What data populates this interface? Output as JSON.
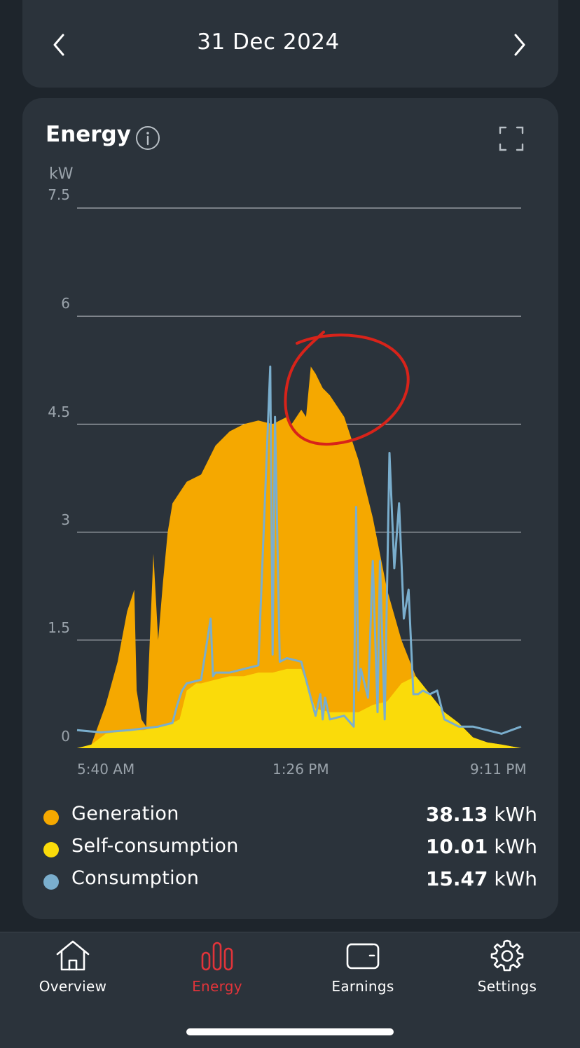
{
  "header": {
    "date": "31 Dec 2024",
    "prev_icon": "chevron-left-icon",
    "next_icon": "chevron-right-icon"
  },
  "card": {
    "title": "Energy",
    "info_icon": "info-icon",
    "expand_icon": "fullscreen-icon"
  },
  "chart_data": {
    "type": "area",
    "y_unit": "kW",
    "ylim": [
      0,
      7.5
    ],
    "yticks": [
      "7.5",
      "6",
      "4.5",
      "3",
      "1.5",
      "0"
    ],
    "xticks": [
      "5:40 AM",
      "1:26 PM",
      "9:11 PM"
    ],
    "grid": true,
    "colors": {
      "generation": "#f5a800",
      "self_consumption": "#fadb0a",
      "consumption": "#7aaecd",
      "annotation": "#d8231a"
    },
    "series": [
      {
        "name": "Generation",
        "x": [
          "5:40 AM",
          "6:10 AM",
          "6:40 AM",
          "7:05 AM",
          "7:25 AM",
          "7:40 AM",
          "7:45 AM",
          "7:55 AM",
          "8:05 AM",
          "8:20 AM",
          "8:30 AM",
          "8:40 AM",
          "8:50 AM",
          "9:00 AM",
          "9:30 AM",
          "10:00 AM",
          "10:30 AM",
          "11:00 AM",
          "11:30 AM",
          "12:00 PM",
          "12:30 PM",
          "1:00 PM",
          "1:10 PM",
          "1:30 PM",
          "1:40 PM",
          "1:50 PM",
          "2:00 PM",
          "2:15 PM",
          "2:30 PM",
          "3:00 PM",
          "3:30 PM",
          "4:00 PM",
          "4:30 PM",
          "5:00 PM",
          "5:30 PM",
          "6:00 PM",
          "6:30 PM",
          "7:00 PM",
          "7:30 PM",
          "8:00 PM",
          "8:30 PM",
          "9:11 PM"
        ],
        "values": [
          0,
          0.05,
          0.6,
          1.2,
          1.9,
          2.2,
          0.8,
          0.4,
          0.3,
          2.7,
          1.5,
          2.3,
          3.0,
          3.4,
          3.7,
          3.8,
          4.2,
          4.4,
          4.5,
          4.55,
          4.5,
          4.6,
          4.5,
          4.7,
          4.6,
          5.3,
          5.2,
          5.0,
          4.9,
          4.6,
          4.0,
          3.2,
          2.2,
          1.5,
          1.0,
          0.75,
          0.5,
          0.35,
          0.15,
          0.08,
          0.05,
          0
        ]
      },
      {
        "name": "Self-consumption",
        "x": [
          "5:40 AM",
          "6:10 AM",
          "6:40 AM",
          "7:30 AM",
          "8:00 AM",
          "8:30 AM",
          "9:00 AM",
          "9:15 AM",
          "9:30 AM",
          "9:50 AM",
          "10:00 AM",
          "10:30 AM",
          "11:00 AM",
          "11:30 AM",
          "12:00 PM",
          "12:30 PM",
          "1:00 PM",
          "1:30 PM",
          "2:00 PM",
          "2:30 PM",
          "3:00 PM",
          "3:30 PM",
          "4:00 PM",
          "4:30 PM",
          "5:00 PM",
          "5:30 PM",
          "6:00 PM",
          "6:30 PM",
          "7:00 PM",
          "7:30 PM",
          "8:00 PM",
          "8:30 PM",
          "9:11 PM"
        ],
        "values": [
          0,
          0.05,
          0.2,
          0.25,
          0.25,
          0.3,
          0.35,
          0.4,
          0.8,
          0.9,
          0.9,
          0.95,
          1.0,
          1.0,
          1.05,
          1.05,
          1.1,
          1.1,
          0.55,
          0.5,
          0.5,
          0.5,
          0.6,
          0.65,
          0.9,
          1.0,
          0.75,
          0.5,
          0.35,
          0.15,
          0.08,
          0.05,
          0
        ]
      },
      {
        "name": "Consumption",
        "x": [
          "5:40 AM",
          "6:30 AM",
          "7:30 AM",
          "8:30 AM",
          "9:00 AM",
          "9:10 AM",
          "9:20 AM",
          "9:30 AM",
          "10:00 AM",
          "10:20 AM",
          "10:25 AM",
          "10:30 AM",
          "11:00 AM",
          "11:30 AM",
          "12:00 PM",
          "12:25 PM",
          "12:30 PM",
          "12:35 PM",
          "12:45 PM",
          "1:00 PM",
          "1:30 PM",
          "2:00 PM",
          "2:10 PM",
          "2:15 PM",
          "2:20 PM",
          "2:30 PM",
          "3:00 PM",
          "3:20 PM",
          "3:25 PM",
          "3:30 PM",
          "3:35 PM",
          "3:50 PM",
          "4:00 PM",
          "4:10 PM",
          "4:15 PM",
          "4:25 PM",
          "4:35 PM",
          "4:45 PM",
          "4:55 PM",
          "5:05 PM",
          "5:15 PM",
          "5:25 PM",
          "5:35 PM",
          "5:45 PM",
          "6:00 PM",
          "6:15 PM",
          "6:30 PM",
          "7:00 PM",
          "7:30 PM",
          "8:00 PM",
          "8:30 PM",
          "9:11 PM"
        ],
        "values": [
          0.25,
          0.22,
          0.25,
          0.3,
          0.35,
          0.6,
          0.8,
          0.9,
          0.95,
          1.8,
          1.0,
          1.05,
          1.05,
          1.1,
          1.15,
          5.3,
          1.3,
          4.6,
          1.2,
          1.25,
          1.2,
          0.45,
          0.75,
          0.4,
          0.7,
          0.4,
          0.45,
          0.3,
          3.35,
          0.8,
          1.1,
          0.7,
          2.6,
          0.5,
          2.6,
          0.4,
          4.1,
          2.5,
          3.4,
          1.8,
          2.2,
          0.75,
          0.75,
          0.8,
          0.75,
          0.8,
          0.4,
          0.3,
          0.3,
          0.25,
          0.2,
          0.3
        ]
      }
    ]
  },
  "legend": [
    {
      "label": "Generation",
      "value": "38.13",
      "unit": "kWh"
    },
    {
      "label": "Self-consumption",
      "value": "10.01",
      "unit": "kWh"
    },
    {
      "label": "Consumption",
      "value": "15.47",
      "unit": "kWh"
    }
  ],
  "tabs": [
    {
      "label": "Overview",
      "icon": "home-icon",
      "active": false
    },
    {
      "label": "Energy",
      "icon": "bar-chart-icon",
      "active": true
    },
    {
      "label": "Earnings",
      "icon": "wallet-icon",
      "active": false
    },
    {
      "label": "Settings",
      "icon": "gear-icon",
      "active": false
    }
  ]
}
